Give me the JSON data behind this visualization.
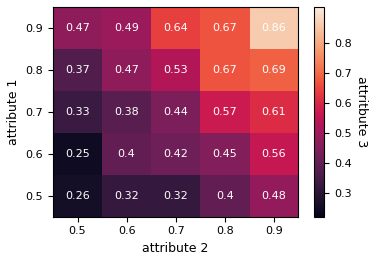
{
  "values": [
    [
      0.26,
      0.32,
      0.32,
      0.4,
      0.48
    ],
    [
      0.25,
      0.4,
      0.42,
      0.45,
      0.56
    ],
    [
      0.33,
      0.38,
      0.44,
      0.57,
      0.61
    ],
    [
      0.37,
      0.47,
      0.53,
      0.67,
      0.69
    ],
    [
      0.47,
      0.49,
      0.64,
      0.67,
      0.86
    ]
  ],
  "attr1_labels": [
    "0.5",
    "0.6",
    "0.7",
    "0.8",
    "0.9"
  ],
  "attr2_labels": [
    "0.5",
    "0.6",
    "0.7",
    "0.8",
    "0.9"
  ],
  "xlabel": "attribute 2",
  "ylabel": "attribute 1",
  "cbar_label": "attritbute 3",
  "vmin": 0.22,
  "vmax": 0.92,
  "cmap": "rocket",
  "cbar_ticks": [
    0.3,
    0.4,
    0.5,
    0.6,
    0.7,
    0.8
  ],
  "annotation_fontsize": 8,
  "annotation_color": "white"
}
